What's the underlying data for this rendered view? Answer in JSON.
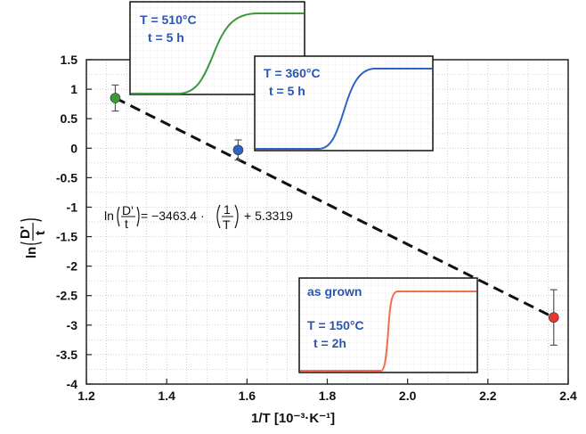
{
  "chart_data": {
    "type": "scatter",
    "xlabel": "1/T   [10⁻³·K⁻¹]",
    "ylabel": "ln(D'/t)",
    "xlim": [
      1.2,
      2.4
    ],
    "ylim": [
      -4,
      1.5
    ],
    "xticks": [
      "1.2",
      "1.4",
      "1.6",
      "1.8",
      "2.0",
      "2.2",
      "2.4"
    ],
    "yticks": [
      "1.5",
      "1",
      "0.5",
      "0",
      "-0.5",
      "-1",
      "-1.5",
      "-2",
      "-2.5",
      "-3",
      "-3.5",
      "-4"
    ],
    "grid": true,
    "points": [
      {
        "x": 1.272,
        "y": 0.85,
        "err": 0.22,
        "color": "#3a9a3a"
      },
      {
        "x": 1.578,
        "y": -0.03,
        "err": 0.17,
        "color": "#2f63c4"
      },
      {
        "x": 2.364,
        "y": -2.87,
        "err": 0.47,
        "color": "#e8392f"
      }
    ],
    "fit": {
      "x": [
        1.272,
        2.364
      ],
      "y": [
        0.85,
        -2.87
      ],
      "style": "dashed",
      "color": "#111111"
    },
    "equation": {
      "lhs_prefix": "ln",
      "lhs_num": "D'",
      "lhs_den": "t",
      "rhs1": "= −3463.4 ·",
      "frac_num": "1",
      "frac_den": "T",
      "rhs2": "+ 5.3319"
    },
    "insets": [
      {
        "line1": "T = 510°C",
        "line2": "t  = 5 h",
        "color": "#3a9a3a"
      },
      {
        "line1": "T = 360°C",
        "line2": "t  = 5 h",
        "color": "#2f63c4"
      },
      {
        "line0": "as grown",
        "line1": "T = 150°C",
        "line2": "t  = 2h",
        "color": "#f07050"
      }
    ]
  }
}
